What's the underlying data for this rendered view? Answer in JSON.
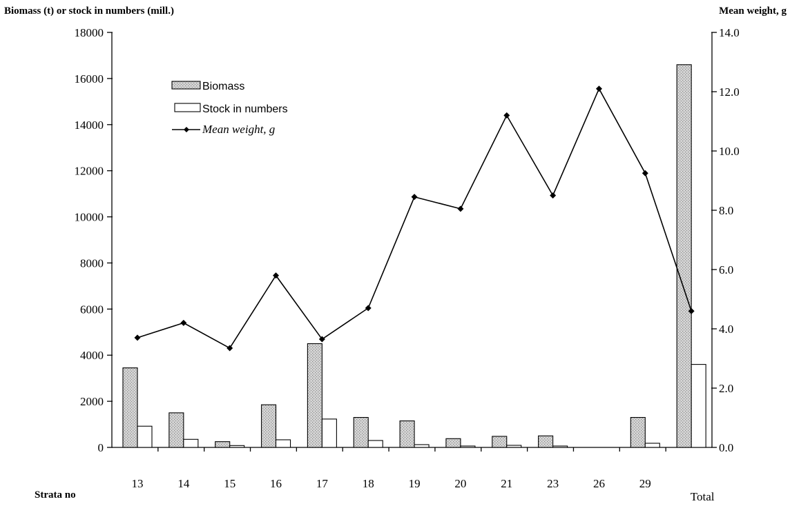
{
  "chart_data": {
    "type": "bar",
    "left_axis_label": "Biomass (t) or stock in numbers (mill.)",
    "right_axis_label": "Mean weight, g",
    "xlabel": "Strata no",
    "categories": [
      "13",
      "14",
      "15",
      "16",
      "17",
      "18",
      "19",
      "20",
      "21",
      "23",
      "26",
      "29",
      "Total"
    ],
    "ylim_left": [
      0,
      18000
    ],
    "ylim_right": [
      0,
      14
    ],
    "yticks_left": [
      "0",
      "2000",
      "4000",
      "6000",
      "8000",
      "10000",
      "12000",
      "14000",
      "16000",
      "18000"
    ],
    "yticks_right": [
      "0.0",
      "2.0",
      "4.0",
      "6.0",
      "8.0",
      "10.0",
      "12.0",
      "14.0"
    ],
    "series": [
      {
        "name": "Biomass",
        "kind": "bar",
        "axis": "left",
        "values": [
          3450,
          1500,
          250,
          1850,
          4500,
          1300,
          1150,
          380,
          480,
          500,
          0,
          1300,
          16600
        ]
      },
      {
        "name": "Stock in numbers",
        "kind": "bar",
        "axis": "left",
        "values": [
          920,
          350,
          80,
          330,
          1230,
          300,
          120,
          60,
          90,
          60,
          0,
          180,
          3600
        ]
      },
      {
        "name": "Mean weight, g",
        "kind": "line",
        "axis": "right",
        "values": [
          3.7,
          4.2,
          3.35,
          5.8,
          3.65,
          4.7,
          8.45,
          8.05,
          11.2,
          8.5,
          12.1,
          9.25,
          4.6
        ]
      }
    ],
    "legend": [
      "Biomass",
      "Stock in numbers",
      "Mean weight, g"
    ],
    "legend_position": "top-left",
    "grid": false
  }
}
